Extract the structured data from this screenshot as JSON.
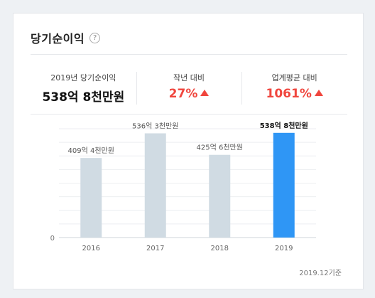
{
  "title": "당기순이익",
  "help_symbol": "?",
  "summary": {
    "base": {
      "label": "2019년 당기순이익",
      "value": "538억 8천만원"
    },
    "yoy": {
      "label": "작년 대비",
      "value": "27%"
    },
    "industry": {
      "label": "업계평균 대비",
      "value": "1061%"
    }
  },
  "colors": {
    "bar_default": "#d0dbe3",
    "bar_highlight": "#2f96f5",
    "up_red": "#f0463e"
  },
  "chart_data": {
    "type": "bar",
    "categories": [
      "2016",
      "2017",
      "2018",
      "2019"
    ],
    "values": [
      409.4,
      536.3,
      425.6,
      538.8
    ],
    "value_labels": [
      "409억 4천만원",
      "536억 3천만원",
      "425억 6천만원",
      "538억 8천만원"
    ],
    "highlight_index": 3,
    "y_tick_labels": [
      "0"
    ],
    "ylim": [
      0,
      560
    ],
    "unit": "억원",
    "grid": true
  },
  "footnote": "2019.12기준"
}
